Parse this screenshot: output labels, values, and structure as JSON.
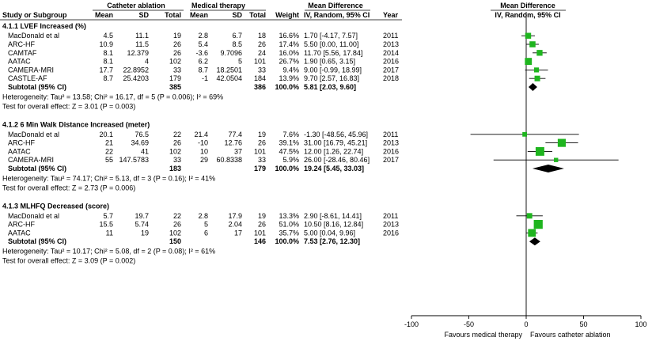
{
  "chart_data": {
    "type": "forest",
    "header": {
      "group1": "Catheter ablation",
      "group2": "Medical therapy",
      "md_title": "Mean Difference",
      "md_method": "IV, Random, 95% CI",
      "cols": [
        "Study or Subgroup",
        "Mean",
        "SD",
        "Total",
        "Mean",
        "SD",
        "Total",
        "Weight",
        "IV, Random, 95% CI",
        "Year"
      ]
    },
    "axis": {
      "min": -100,
      "max": 100,
      "ticks": [
        -100,
        -50,
        0,
        50,
        100
      ],
      "tick_labels": [
        "-100",
        "-50",
        "0",
        "50",
        "100"
      ],
      "left_label": "Favours medical therapy",
      "right_label": "Favours catheter ablation"
    },
    "colors": {
      "marker": "#1fb51f",
      "line": "#000000",
      "diamond": "#000000"
    },
    "subgroups": [
      {
        "title": "4.1.1 LVEF Increased (%)",
        "studies": [
          {
            "name": "MacDonald et al",
            "m1": "4.5",
            "sd1": "11.1",
            "n1": "19",
            "m2": "2.8",
            "sd2": "6.7",
            "n2": "18",
            "weight": "16.6%",
            "ci_text": "1.70 [-4.17, 7.57]",
            "year": "2011",
            "est": 1.7,
            "lo": -4.17,
            "hi": 7.57,
            "w": 16.6
          },
          {
            "name": "ARC-HF",
            "m1": "10.9",
            "sd1": "11.5",
            "n1": "26",
            "m2": "5.4",
            "sd2": "8.5",
            "n2": "26",
            "weight": "17.4%",
            "ci_text": "5.50 [0.00, 11.00]",
            "year": "2013",
            "est": 5.5,
            "lo": 0.0,
            "hi": 11.0,
            "w": 17.4
          },
          {
            "name": "CAMTAF",
            "m1": "8.1",
            "sd1": "12.379",
            "n1": "26",
            "m2": "-3.6",
            "sd2": "9.7096",
            "n2": "24",
            "weight": "16.0%",
            "ci_text": "11.70 [5.56, 17.84]",
            "year": "2014",
            "est": 11.7,
            "lo": 5.56,
            "hi": 17.84,
            "w": 16.0
          },
          {
            "name": "AATAC",
            "m1": "8.1",
            "sd1": "4",
            "n1": "102",
            "m2": "6.2",
            "sd2": "5",
            "n2": "101",
            "weight": "26.7%",
            "ci_text": "1.90 [0.65, 3.15]",
            "year": "2016",
            "est": 1.9,
            "lo": 0.65,
            "hi": 3.15,
            "w": 26.7
          },
          {
            "name": "CAMERA-MRI",
            "m1": "17.7",
            "sd1": "22.8952",
            "n1": "33",
            "m2": "8.7",
            "sd2": "18.2501",
            "n2": "33",
            "weight": "9.4%",
            "ci_text": "9.00 [-0.99, 18.99]",
            "year": "2017",
            "est": 9.0,
            "lo": -0.99,
            "hi": 18.99,
            "w": 9.4
          },
          {
            "name": "CASTLE-AF",
            "m1": "8.7",
            "sd1": "25.4203",
            "n1": "179",
            "m2": "-1",
            "sd2": "42.0504",
            "n2": "184",
            "weight": "13.9%",
            "ci_text": "9.70 [2.57, 16.83]",
            "year": "2018",
            "est": 9.7,
            "lo": 2.57,
            "hi": 16.83,
            "w": 13.9
          }
        ],
        "subtotal": {
          "label": "Subtotal (95% CI)",
          "n1": "385",
          "n2": "386",
          "weight": "100.0%",
          "ci_text": "5.81 [2.03, 9.60]",
          "est": 5.81,
          "lo": 2.03,
          "hi": 9.6
        },
        "heterogeneity": "Heterogeneity: Tau² = 13.58; Chi² = 16.17, df = 5 (P = 0.006); I² = 69%",
        "overall": "Test for overall effect: Z = 3.01 (P = 0.003)"
      },
      {
        "title": "4.1.2 6 Min Walk Distance Increased (meter)",
        "studies": [
          {
            "name": "MacDonald et al",
            "m1": "20.1",
            "sd1": "76.5",
            "n1": "22",
            "m2": "21.4",
            "sd2": "77.4",
            "n2": "19",
            "weight": "7.6%",
            "ci_text": "-1.30 [-48.56, 45.96]",
            "year": "2011",
            "est": -1.3,
            "lo": -48.56,
            "hi": 45.96,
            "w": 7.6
          },
          {
            "name": "ARC-HF",
            "m1": "21",
            "sd1": "34.69",
            "n1": "26",
            "m2": "-10",
            "sd2": "12.76",
            "n2": "26",
            "weight": "39.1%",
            "ci_text": "31.00 [16.79, 45.21]",
            "year": "2013",
            "est": 31.0,
            "lo": 16.79,
            "hi": 45.21,
            "w": 39.1
          },
          {
            "name": "AATAC",
            "m1": "22",
            "sd1": "41",
            "n1": "102",
            "m2": "10",
            "sd2": "37",
            "n2": "101",
            "weight": "47.5%",
            "ci_text": "12.00 [1.26, 22.74]",
            "year": "2016",
            "est": 12.0,
            "lo": 1.26,
            "hi": 22.74,
            "w": 47.5
          },
          {
            "name": "CAMERA-MRI",
            "m1": "55",
            "sd1": "147.5783",
            "n1": "33",
            "m2": "29",
            "sd2": "60.8338",
            "n2": "33",
            "weight": "5.9%",
            "ci_text": "26.00 [-28.46, 80.46]",
            "year": "2017",
            "est": 26.0,
            "lo": -28.46,
            "hi": 80.46,
            "w": 5.9
          }
        ],
        "subtotal": {
          "label": "Subtotal (95% CI)",
          "n1": "183",
          "n2": "179",
          "weight": "100.0%",
          "ci_text": "19.24 [5.45, 33.03]",
          "est": 19.24,
          "lo": 5.45,
          "hi": 33.03
        },
        "heterogeneity": "Heterogeneity: Tau² = 74.17; Chi² = 5.13, df = 3 (P = 0.16); I² = 41%",
        "overall": "Test for overall effect: Z = 2.73 (P = 0.006)"
      },
      {
        "title": "4.1.3 MLHFQ Decreased (score)",
        "studies": [
          {
            "name": "MacDonald et al",
            "m1": "5.7",
            "sd1": "19.7",
            "n1": "22",
            "m2": "2.8",
            "sd2": "17.9",
            "n2": "19",
            "weight": "13.3%",
            "ci_text": "2.90 [-8.61, 14.41]",
            "year": "2011",
            "est": 2.9,
            "lo": -8.61,
            "hi": 14.41,
            "w": 13.3
          },
          {
            "name": "ARC-HF",
            "m1": "15.5",
            "sd1": "5.74",
            "n1": "26",
            "m2": "5",
            "sd2": "2.04",
            "n2": "26",
            "weight": "51.0%",
            "ci_text": "10.50 [8.16, 12.84]",
            "year": "2013",
            "est": 10.5,
            "lo": 8.16,
            "hi": 12.84,
            "w": 51.0
          },
          {
            "name": "AATAC",
            "m1": "11",
            "sd1": "19",
            "n1": "102",
            "m2": "6",
            "sd2": "17",
            "n2": "101",
            "weight": "35.7%",
            "ci_text": "5.00 [0.04, 9.96]",
            "year": "2016",
            "est": 5.0,
            "lo": 0.04,
            "hi": 9.96,
            "w": 35.7
          }
        ],
        "subtotal": {
          "label": "Subtotal (95% CI)",
          "n1": "150",
          "n2": "146",
          "weight": "100.0%",
          "ci_text": "7.53 [2.76, 12.30]",
          "est": 7.53,
          "lo": 2.76,
          "hi": 12.3
        },
        "heterogeneity": "Heterogeneity: Tau² = 10.17; Chi² = 5.08, df = 2 (P = 0.08); I² = 61%",
        "overall": "Test for overall effect: Z = 3.09 (P = 0.002)"
      }
    ]
  }
}
